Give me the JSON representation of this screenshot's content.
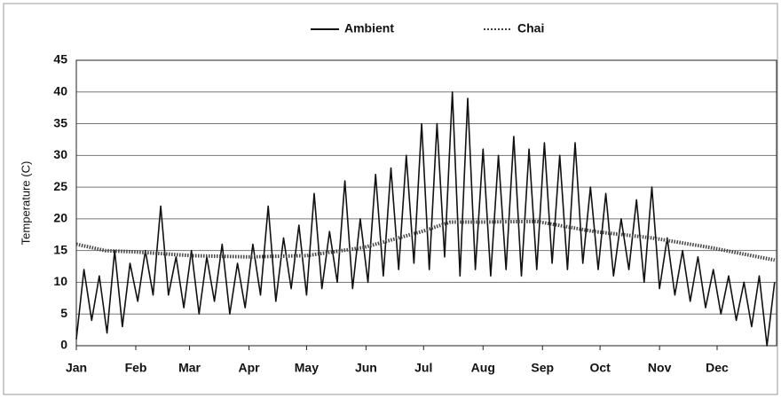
{
  "chart_data": {
    "type": "line",
    "ylabel": "Temperature (C)",
    "xlim": [
      0,
      365
    ],
    "xticks": [
      {
        "value": 0,
        "label": "Jan"
      },
      {
        "value": 31,
        "label": "Feb"
      },
      {
        "value": 59,
        "label": "Mar"
      },
      {
        "value": 90,
        "label": "Apr"
      },
      {
        "value": 120,
        "label": "May"
      },
      {
        "value": 151,
        "label": "Jun"
      },
      {
        "value": 181,
        "label": "Jul"
      },
      {
        "value": 212,
        "label": "Aug"
      },
      {
        "value": 243,
        "label": "Sep"
      },
      {
        "value": 273,
        "label": "Oct"
      },
      {
        "value": 304,
        "label": "Nov"
      },
      {
        "value": 334,
        "label": "Dec"
      }
    ],
    "ylim": [
      0,
      45
    ],
    "yticks": [
      0,
      5,
      10,
      15,
      20,
      25,
      30,
      35,
      40,
      45
    ],
    "grid": true,
    "legend": "top",
    "series": [
      {
        "name": "Ambient",
        "color": "#111111",
        "style": "solid",
        "x": [
          0,
          4,
          8,
          12,
          16,
          20,
          24,
          28,
          32,
          36,
          40,
          44,
          48,
          52,
          56,
          60,
          64,
          68,
          72,
          76,
          80,
          84,
          88,
          92,
          96,
          100,
          104,
          108,
          112,
          116,
          120,
          124,
          128,
          132,
          136,
          140,
          144,
          148,
          152,
          156,
          160,
          164,
          168,
          172,
          176,
          180,
          184,
          188,
          192,
          196,
          200,
          204,
          208,
          212,
          216,
          220,
          224,
          228,
          232,
          236,
          240,
          244,
          248,
          252,
          256,
          260,
          264,
          268,
          272,
          276,
          280,
          284,
          288,
          292,
          296,
          300,
          304,
          308,
          312,
          316,
          320,
          324,
          328,
          332,
          336,
          340,
          344,
          348,
          352,
          356,
          360,
          364
        ],
        "values": [
          1,
          12,
          4,
          11,
          2,
          15,
          3,
          13,
          7,
          15,
          8,
          22,
          8,
          14,
          6,
          15,
          5,
          14,
          7,
          16,
          5,
          13,
          6,
          16,
          8,
          22,
          7,
          17,
          9,
          19,
          8,
          24,
          9,
          18,
          10,
          26,
          9,
          20,
          10,
          27,
          11,
          28,
          12,
          30,
          13,
          35,
          12,
          35,
          14,
          40,
          11,
          39,
          12,
          31,
          11,
          30,
          12,
          33,
          11,
          31,
          12,
          32,
          13,
          30,
          12,
          32,
          13,
          25,
          12,
          24,
          11,
          20,
          12,
          23,
          10,
          25,
          9,
          17,
          8,
          15,
          7,
          14,
          6,
          12,
          5,
          11,
          4,
          10,
          3,
          11,
          0,
          10
        ]
      },
      {
        "name": "Chai",
        "color": "#444444",
        "style": "dotted",
        "x": [
          0,
          15,
          30,
          45,
          60,
          90,
          120,
          150,
          180,
          195,
          210,
          240,
          270,
          300,
          330,
          364
        ],
        "values": [
          16,
          15,
          14.8,
          14.5,
          14.2,
          14,
          14.2,
          15.5,
          18,
          19.5,
          19.5,
          19.6,
          18,
          17,
          15.5,
          13.5
        ]
      }
    ]
  }
}
